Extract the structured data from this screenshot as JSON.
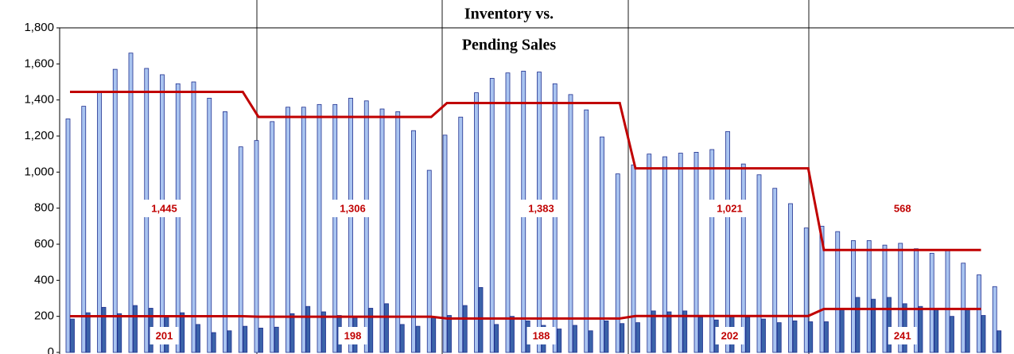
{
  "chart_data": {
    "type": "bar",
    "title": [
      "Inventory vs.",
      "Pending Sales"
    ],
    "categories": [
      null,
      null,
      null,
      null,
      null,
      null,
      null,
      null,
      null,
      null,
      null,
      null,
      null,
      null,
      null,
      null,
      null,
      null,
      null,
      null,
      null,
      null,
      null,
      null,
      null,
      null,
      null,
      null,
      null,
      null,
      null,
      null,
      null,
      null,
      null,
      null,
      null,
      null,
      null,
      null,
      null,
      null,
      null,
      null,
      null,
      null,
      null,
      null,
      null,
      null,
      null,
      null,
      null,
      null,
      null,
      null,
      null,
      null,
      null,
      null
    ],
    "series": [
      {
        "color": "#a9c4f0",
        "stroke": "#1f2f8f",
        "values": [
          1295,
          1365,
          1440,
          1570,
          1660,
          1575,
          1540,
          1490,
          1500,
          1410,
          1335,
          1140,
          1175,
          1280,
          1360,
          1360,
          1375,
          1375,
          1410,
          1395,
          1350,
          1335,
          1230,
          1010,
          1205,
          1305,
          1440,
          1520,
          1550,
          1560,
          1555,
          1490,
          1430,
          1345,
          1195,
          990,
          1040,
          1100,
          1085,
          1105,
          1110,
          1125,
          1225,
          1045,
          985,
          910,
          825,
          690,
          700,
          670,
          620,
          620,
          595,
          605,
          575,
          550,
          565,
          495,
          430,
          365
        ]
      },
      {
        "color": "#3b63a9",
        "stroke": "#1f2f8f",
        "values": [
          185,
          220,
          250,
          215,
          260,
          245,
          195,
          220,
          155,
          110,
          120,
          145,
          135,
          140,
          215,
          255,
          225,
          205,
          195,
          245,
          270,
          155,
          145,
          195,
          205,
          260,
          360,
          155,
          200,
          175,
          150,
          130,
          150,
          120,
          175,
          160,
          165,
          230,
          225,
          230,
          195,
          180,
          200,
          195,
          185,
          165,
          175,
          170,
          170,
          240,
          305,
          295,
          305,
          270,
          255,
          240,
          200,
          240,
          205,
          120
        ]
      }
    ],
    "averages": [
      {
        "color": "#c00000",
        "values": [
          1445,
          1445,
          1445,
          1445,
          1445,
          1445,
          1445,
          1445,
          1445,
          1445,
          1445,
          1445,
          1306,
          1306,
          1306,
          1306,
          1306,
          1306,
          1306,
          1306,
          1306,
          1306,
          1306,
          1306,
          1383,
          1383,
          1383,
          1383,
          1383,
          1383,
          1383,
          1383,
          1383,
          1383,
          1383,
          1383,
          1021,
          1021,
          1021,
          1021,
          1021,
          1021,
          1021,
          1021,
          1021,
          1021,
          1021,
          1021,
          568,
          568,
          568,
          568,
          568,
          568,
          568,
          568,
          568,
          568,
          568,
          null
        ],
        "value_labels": [
          null,
          null,
          null,
          null,
          null,
          null,
          "1,445",
          null,
          null,
          null,
          null,
          null,
          null,
          null,
          null,
          null,
          null,
          null,
          "1,306",
          null,
          null,
          null,
          null,
          null,
          null,
          null,
          null,
          null,
          null,
          null,
          "1,383",
          null,
          null,
          null,
          null,
          null,
          null,
          null,
          null,
          null,
          null,
          null,
          "1,021",
          null,
          null,
          null,
          null,
          null,
          null,
          null,
          null,
          null,
          null,
          "568",
          null,
          null,
          null,
          null,
          null,
          null
        ]
      },
      {
        "color": "#c00000",
        "values": [
          201,
          201,
          201,
          201,
          201,
          201,
          201,
          201,
          201,
          201,
          201,
          201,
          198,
          198,
          198,
          198,
          198,
          198,
          198,
          198,
          198,
          198,
          198,
          198,
          188,
          188,
          188,
          188,
          188,
          188,
          188,
          188,
          188,
          188,
          188,
          188,
          202,
          202,
          202,
          202,
          202,
          202,
          202,
          202,
          202,
          202,
          202,
          202,
          241,
          241,
          241,
          241,
          241,
          241,
          241,
          241,
          241,
          241,
          241,
          null
        ],
        "value_labels": [
          null,
          null,
          null,
          null,
          null,
          null,
          "201",
          null,
          null,
          null,
          null,
          null,
          null,
          null,
          null,
          null,
          null,
          null,
          "198",
          null,
          null,
          null,
          null,
          null,
          null,
          null,
          null,
          null,
          null,
          null,
          "188",
          null,
          null,
          null,
          null,
          null,
          null,
          null,
          null,
          null,
          null,
          null,
          "202",
          null,
          null,
          null,
          null,
          null,
          null,
          null,
          null,
          null,
          null,
          "241",
          null,
          null,
          null,
          null,
          null,
          null
        ]
      }
    ],
    "ylim": [
      0,
      1800
    ],
    "yticks": [
      0,
      200,
      400,
      600,
      800,
      {
        "value": 1000,
        "label": "1,000"
      },
      {
        "value": 1200,
        "label": "1,200"
      },
      {
        "value": 1400,
        "label": "1,400"
      },
      {
        "value": 1600,
        "label": "1,600"
      },
      {
        "value": 1800,
        "label": "1,800"
      }
    ]
  }
}
